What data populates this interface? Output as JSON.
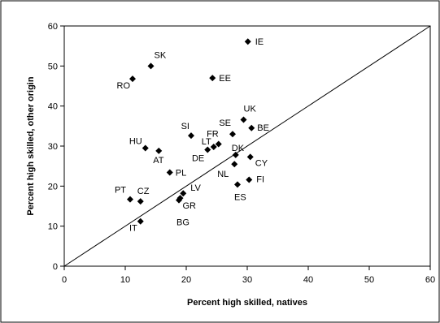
{
  "chart_data": {
    "type": "scatter",
    "xlabel": "Percent high skilled, natives",
    "ylabel": "Percent high skilled, other origin",
    "xlim": [
      0,
      60
    ],
    "ylim": [
      0,
      60
    ],
    "xticks": [
      "0",
      "10",
      "20",
      "30",
      "40",
      "50",
      "60"
    ],
    "yticks": [
      "0",
      "10",
      "20",
      "30",
      "40",
      "50",
      "60"
    ],
    "grid": false,
    "reference_line": "y = x diagonal",
    "marker": "diamond",
    "marker_color": "#000000",
    "points": [
      {
        "label": "IE",
        "x": 30.1,
        "y": 56.1
      },
      {
        "label": "SK",
        "x": 14.2,
        "y": 50.0
      },
      {
        "label": "RO",
        "x": 11.2,
        "y": 46.8
      },
      {
        "label": "EE",
        "x": 24.3,
        "y": 47.0
      },
      {
        "label": "UK",
        "x": 29.4,
        "y": 36.6
      },
      {
        "label": "SE",
        "x": 27.6,
        "y": 33.0
      },
      {
        "label": "BE",
        "x": 30.7,
        "y": 34.5
      },
      {
        "label": "SI",
        "x": 20.8,
        "y": 32.6
      },
      {
        "label": "FR",
        "x": 25.3,
        "y": 30.5
      },
      {
        "label": "LT",
        "x": 24.5,
        "y": 29.8
      },
      {
        "label": "DE",
        "x": 23.5,
        "y": 29.1
      },
      {
        "label": "HU",
        "x": 13.3,
        "y": 29.5
      },
      {
        "label": "AT",
        "x": 15.5,
        "y": 28.8
      },
      {
        "label": "DK",
        "x": 28.1,
        "y": 27.8
      },
      {
        "label": "CY",
        "x": 30.5,
        "y": 27.3
      },
      {
        "label": "NL",
        "x": 27.9,
        "y": 25.5
      },
      {
        "label": "PL",
        "x": 17.3,
        "y": 23.4
      },
      {
        "label": "FI",
        "x": 30.3,
        "y": 21.6
      },
      {
        "label": "ES",
        "x": 28.4,
        "y": 20.4
      },
      {
        "label": "LV",
        "x": 19.5,
        "y": 18.2
      },
      {
        "label": "GR",
        "x": 19.0,
        "y": 17.0
      },
      {
        "label": "BG",
        "x": 18.8,
        "y": 16.5
      },
      {
        "label": "PT",
        "x": 10.8,
        "y": 16.7
      },
      {
        "label": "CZ",
        "x": 12.5,
        "y": 16.2
      },
      {
        "label": "IT",
        "x": 12.5,
        "y": 11.2
      }
    ]
  }
}
